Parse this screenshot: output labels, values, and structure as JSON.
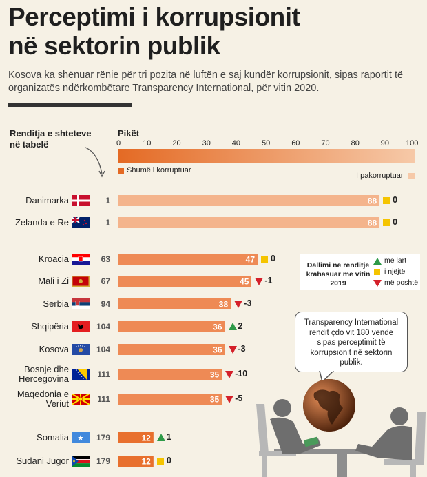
{
  "title": "Perceptimi i korrupsionit\nnë sektorin publik",
  "subtitle": "Kosova ka shënuar rënie për tri pozita në luftën e saj kundër korrupsionit, sipas raportit të organizatës ndërkombëtare Transparency International, për vitin 2020.",
  "rank_header": "Renditja e shteteve\nnë tabelë",
  "points_header": "Pikët",
  "scale_low": "Shumë i korruptuar",
  "scale_high": "I pakorruptuar",
  "legend": {
    "title": "Dallimi në renditje krahasuar me vitin 2019",
    "up": "më lart",
    "same": "i njëjtë",
    "down": "më poshtë"
  },
  "bubble_text": "Transparency International rendit çdo vit 180 vende sipas perceptimit të korrupsionit në sektorin publik.",
  "colors": {
    "bar_high": "#f4b48c",
    "bar_mid": "#ee8a55",
    "bar_low": "#e8702e",
    "up": "#2e9a48",
    "same": "#f5c400",
    "down": "#d4202a"
  },
  "chart_data": {
    "type": "bar",
    "orientation": "horizontal",
    "xlabel": "Pikët",
    "xlim": [
      0,
      100
    ],
    "ticks": [
      0,
      10,
      20,
      30,
      40,
      50,
      60,
      70,
      80,
      90,
      100
    ],
    "categories": [
      "Danimarka",
      "Zelanda e Re",
      "Kroacia",
      "Mali i Zi",
      "Serbia",
      "Shqipëria",
      "Kosova",
      "Bosnje dhe Hercegovina",
      "Maqedonia e Veriut",
      "Somalia",
      "Sudani Jugor"
    ],
    "rows": [
      {
        "label": "Danimarka",
        "rank": "1",
        "value": 88,
        "change": "0",
        "dir": "same",
        "flag": "dk"
      },
      {
        "label": "Zelanda e Re",
        "rank": "1",
        "value": 88,
        "change": "0",
        "dir": "same",
        "flag": "nz"
      },
      {
        "label": "Kroacia",
        "rank": "63",
        "value": 47,
        "change": "0",
        "dir": "same",
        "flag": "hr"
      },
      {
        "label": "Mali i Zi",
        "rank": "67",
        "value": 45,
        "change": "-1",
        "dir": "down",
        "flag": "me"
      },
      {
        "label": "Serbia",
        "rank": "94",
        "value": 38,
        "change": "-3",
        "dir": "down",
        "flag": "rs"
      },
      {
        "label": "Shqipëria",
        "rank": "104",
        "value": 36,
        "change": "2",
        "dir": "up",
        "flag": "al"
      },
      {
        "label": "Kosova",
        "rank": "104",
        "value": 36,
        "change": "-3",
        "dir": "down",
        "flag": "xk"
      },
      {
        "label": "Bosnje dhe\nHercegovina",
        "rank": "111",
        "value": 35,
        "change": "-10",
        "dir": "down",
        "flag": "ba"
      },
      {
        "label": "Maqedonia e\nVeriut",
        "rank": "111",
        "value": 35,
        "change": "-5",
        "dir": "down",
        "flag": "mk"
      },
      {
        "label": "Somalia",
        "rank": "179",
        "value": 12,
        "change": "1",
        "dir": "up",
        "flag": "so"
      },
      {
        "label": "Sudani Jugor",
        "rank": "179",
        "value": 12,
        "change": "0",
        "dir": "same",
        "flag": "ss"
      }
    ]
  }
}
